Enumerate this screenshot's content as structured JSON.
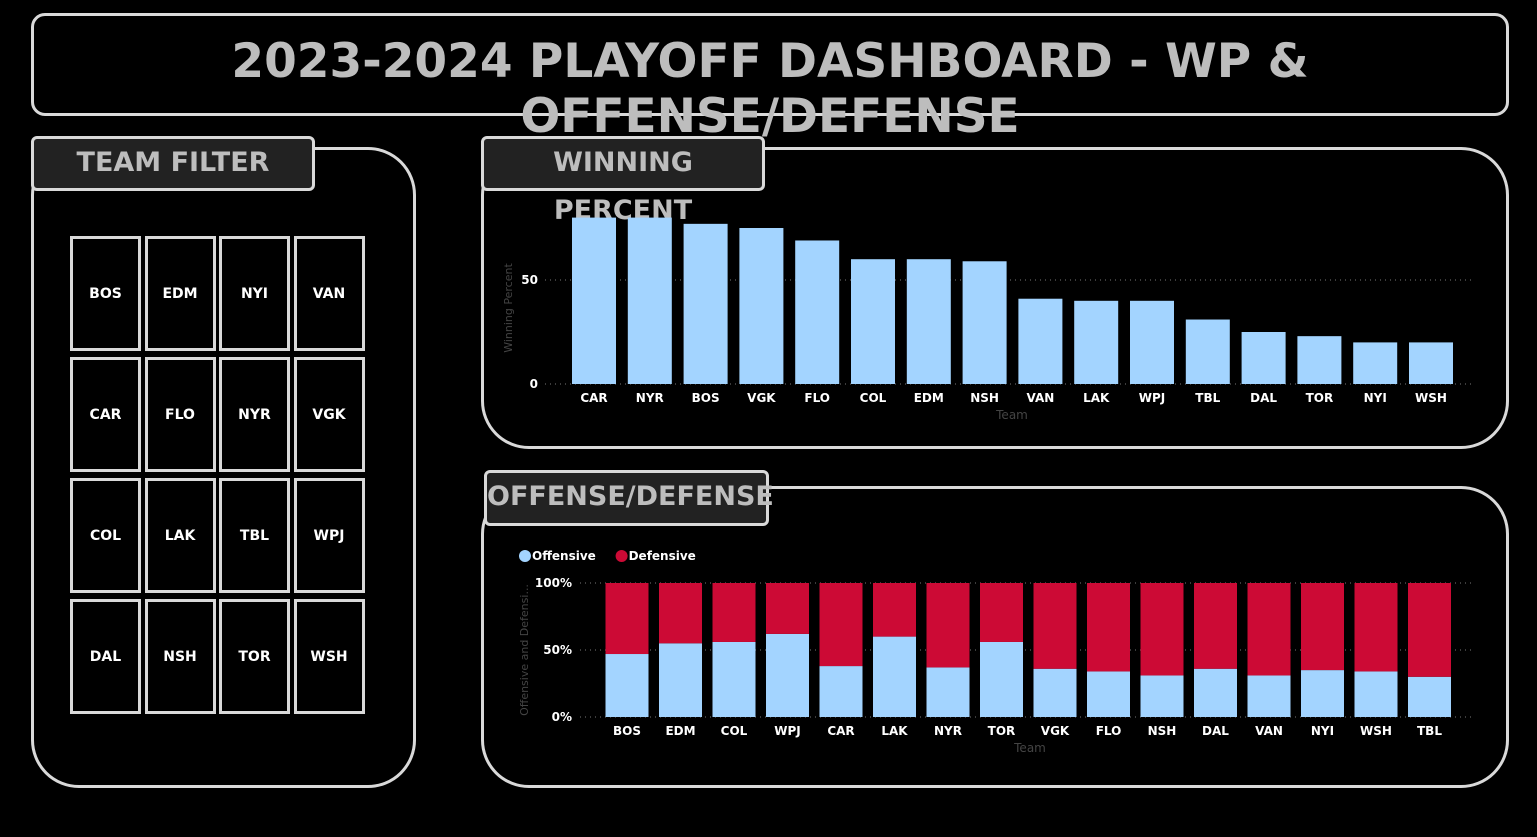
{
  "header": {
    "title": "2023-2024 PLAYOFF DASHBOARD - WP & OFFENSE/DEFENSE"
  },
  "team_filter": {
    "title": "TEAM FILTER",
    "teams": [
      [
        "BOS",
        "EDM",
        "NYI",
        "VAN"
      ],
      [
        "CAR",
        "FLO",
        "NYR",
        "VGK"
      ],
      [
        "COL",
        "LAK",
        "TBL",
        "WPJ"
      ],
      [
        "DAL",
        "NSH",
        "TOR",
        "WSH"
      ]
    ]
  },
  "winning_percent": {
    "title": "WINNING PERCENT",
    "chart_data": {
      "type": "bar",
      "categories": [
        "CAR",
        "NYR",
        "BOS",
        "VGK",
        "FLO",
        "COL",
        "EDM",
        "NSH",
        "VAN",
        "LAK",
        "WPJ",
        "TBL",
        "DAL",
        "TOR",
        "NYI",
        "WSH"
      ],
      "values": [
        80,
        80,
        77,
        75,
        69,
        60,
        60,
        59,
        41,
        40,
        40,
        31,
        25,
        23,
        20,
        20
      ],
      "xlabel": "Team",
      "ylabel": "Winning Percent",
      "yticks": [
        "0",
        "50"
      ],
      "ylim": [
        0,
        85
      ],
      "bar_color": "#a3d4ff",
      "grid": "dotted horizontal"
    }
  },
  "offense_defense": {
    "title": "OFFENSE/DEFENSE",
    "chart_data": {
      "type": "bar",
      "stacked": "100%",
      "categories": [
        "BOS",
        "EDM",
        "COL",
        "WPJ",
        "CAR",
        "LAK",
        "NYR",
        "TOR",
        "VGK",
        "FLO",
        "NSH",
        "DAL",
        "VAN",
        "NYI",
        "WSH",
        "TBL"
      ],
      "series": [
        {
          "name": "Offensive",
          "color": "#a3d4ff",
          "values": [
            47,
            55,
            56,
            62,
            38,
            60,
            37,
            56,
            36,
            34,
            31,
            36,
            31,
            35,
            34,
            30
          ]
        },
        {
          "name": "Defensive",
          "color": "#cc0a35",
          "values": [
            53,
            45,
            44,
            38,
            62,
            40,
            63,
            44,
            64,
            66,
            69,
            64,
            69,
            65,
            66,
            70
          ]
        }
      ],
      "xlabel": "Team",
      "ylabel": "Offensive and Defensi...",
      "yticks": [
        "0%",
        "50%",
        "100%"
      ],
      "ylim": [
        0,
        100
      ],
      "legend": "top-left"
    }
  }
}
